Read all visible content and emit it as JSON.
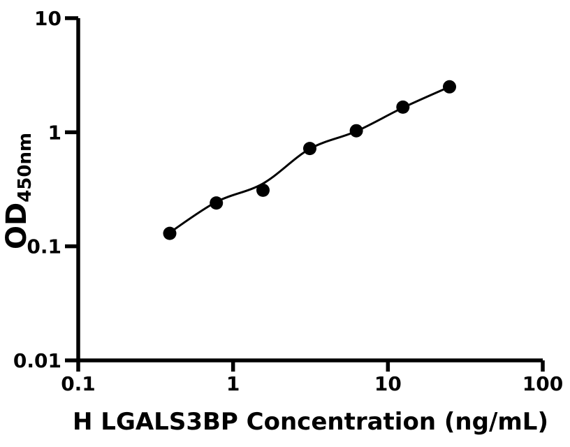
{
  "chart_data": {
    "type": "scatter",
    "title": "",
    "xlabel": "H LGALS3BP Concentration (ng/mL)",
    "ylabel": "OD450nm",
    "ylabel_main": "OD",
    "ylabel_sub": "450nm",
    "x_scale": "log",
    "y_scale": "log",
    "xlim": [
      0.1,
      100
    ],
    "ylim": [
      0.01,
      10
    ],
    "grid": false,
    "legend_position": "none",
    "background_color": "#ffffff",
    "axis_color": "#000000",
    "x_ticks": [
      {
        "value": 0.1,
        "label": "0.1"
      },
      {
        "value": 1,
        "label": "1"
      },
      {
        "value": 10,
        "label": "10"
      },
      {
        "value": 100,
        "label": "100"
      }
    ],
    "y_ticks": [
      {
        "value": 0.01,
        "label": "0.01"
      },
      {
        "value": 0.1,
        "label": "0.1"
      },
      {
        "value": 1,
        "label": "1"
      },
      {
        "value": 10,
        "label": "10"
      }
    ],
    "series": [
      {
        "name": "standard-curve-points",
        "marker": "circle",
        "color": "#000000",
        "points": [
          {
            "x": 0.39,
            "y": 0.13
          },
          {
            "x": 0.78,
            "y": 0.24
          },
          {
            "x": 1.56,
            "y": 0.31
          },
          {
            "x": 3.13,
            "y": 0.72
          },
          {
            "x": 6.25,
            "y": 1.03
          },
          {
            "x": 12.5,
            "y": 1.66
          },
          {
            "x": 25,
            "y": 2.5
          }
        ]
      }
    ],
    "fit_curve": {
      "name": "fitted-standard-curve",
      "color": "#000000",
      "points": [
        {
          "x": 0.39,
          "y": 0.132
        },
        {
          "x": 0.78,
          "y": 0.245
        },
        {
          "x": 1.56,
          "y": 0.355
        },
        {
          "x": 3.13,
          "y": 0.715
        },
        {
          "x": 6.25,
          "y": 1.02
        },
        {
          "x": 12.5,
          "y": 1.64
        },
        {
          "x": 25,
          "y": 2.5
        }
      ]
    }
  }
}
